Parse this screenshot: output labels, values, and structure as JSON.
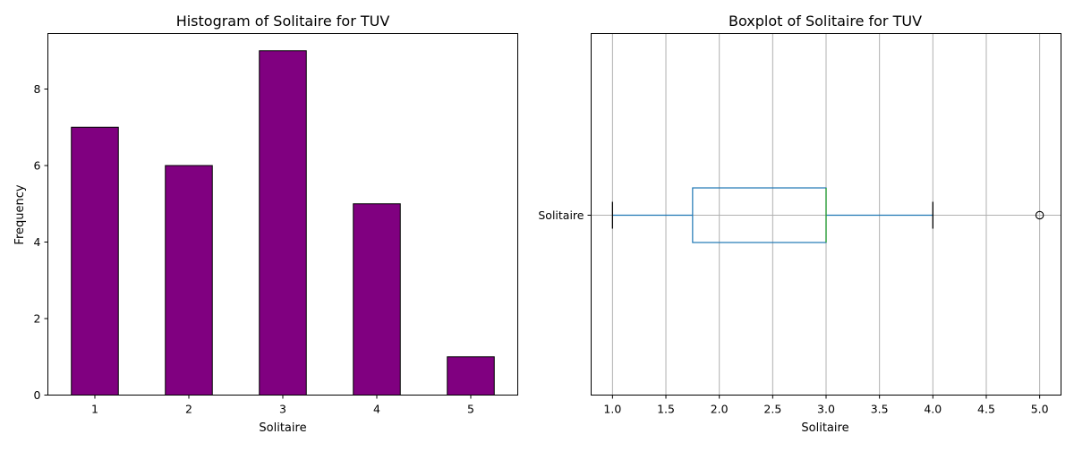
{
  "chart_data": [
    {
      "type": "bar",
      "title": "Histogram of Solitaire for TUV",
      "xlabel": "Solitaire",
      "ylabel": "Frequency",
      "categories": [
        "1",
        "2",
        "3",
        "4",
        "5"
      ],
      "values": [
        7,
        6,
        9,
        5,
        1
      ],
      "yticks": [
        0,
        2,
        4,
        6,
        8
      ],
      "ylim": [
        0,
        9.45
      ],
      "bar_color": "#800080",
      "edge_color": "#000000",
      "grid": false
    },
    {
      "type": "boxplot",
      "title": "Boxplot of Solitaire for TUV",
      "xlabel": "Solitaire",
      "category_label": "Solitaire",
      "whisker_low": 1.0,
      "q1": 1.75,
      "median": 3.0,
      "q3": 3.0,
      "whisker_high": 4.0,
      "outliers": [
        5.0
      ],
      "xlim": [
        0.8,
        5.2
      ],
      "xticks": [
        "1.0",
        "1.5",
        "2.0",
        "2.5",
        "3.0",
        "3.5",
        "4.0",
        "4.5",
        "5.0"
      ],
      "box_color": "#1f77b4",
      "median_color": "#2ca02c",
      "grid": true
    }
  ]
}
